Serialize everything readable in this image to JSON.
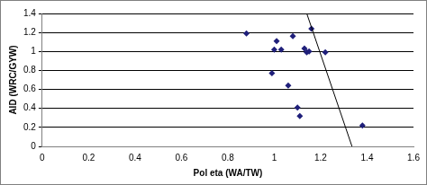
{
  "chart_data": {
    "type": "scatter",
    "x_label": "Pol eta (WA/TW)",
    "y_label": "AID (WRC/GYW)",
    "series": [
      {
        "color": "#1f1f7a",
        "marker": "diamond",
        "x": [
          0.88,
          0.99,
          1.0,
          1.01,
          1.03,
          1.06,
          1.08,
          1.1,
          1.11,
          1.13,
          1.14,
          1.15,
          1.16,
          1.22,
          1.38
        ],
        "values": [
          1.19,
          0.77,
          1.02,
          1.11,
          1.02,
          0.64,
          1.16,
          0.41,
          0.32,
          1.03,
          0.99,
          1.0,
          1.24,
          0.99,
          0.22
        ]
      },
      {
        "type": "line",
        "color": "#000000",
        "line_style": "solid",
        "x": [
          1.14,
          1.335
        ],
        "values": [
          1.4,
          0
        ]
      }
    ],
    "xlim": [
      0,
      1.6
    ],
    "xticks": [
      0,
      0.2,
      0.4,
      0.6,
      0.8,
      1,
      1.2,
      1.4,
      1.6
    ],
    "ylim": [
      0,
      1.4
    ],
    "yticks": [
      0,
      0.2,
      0.4,
      0.6,
      0.8,
      1,
      1.2,
      1.4
    ],
    "grid": "y"
  }
}
